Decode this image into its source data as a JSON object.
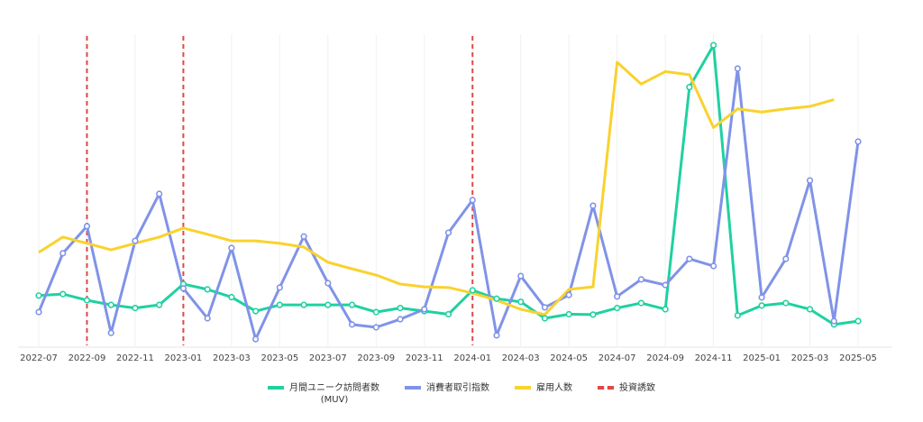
{
  "chart_data": {
    "type": "line",
    "categories": [
      "2022-07",
      null,
      "2022-09",
      null,
      "2022-11",
      null,
      "2023-01",
      null,
      "2023-03",
      null,
      "2023-05",
      null,
      "2023-07",
      null,
      "2023-09",
      null,
      "2023-11",
      null,
      "2024-01",
      null,
      "2024-03",
      null,
      "2024-05",
      null,
      "2024-07",
      null,
      "2024-09",
      null,
      "2024-11",
      null,
      "2025-01",
      null,
      "2025-03",
      null,
      "2025-05"
    ],
    "ylim": [
      0,
      100
    ],
    "grid": true,
    "series": [
      {
        "name": "月間ユニーク訪問者数\n(MUV)",
        "color": "#1fd1a0",
        "markers": true,
        "values": [
          16,
          16.5,
          14.5,
          13,
          12,
          13,
          19.7,
          18,
          15.5,
          11,
          13,
          13,
          13,
          13,
          10.7,
          12,
          11,
          10,
          17.7,
          15,
          14,
          8.7,
          10,
          9.9,
          12,
          13.6,
          11.6,
          83,
          96.5,
          9.6,
          12.8,
          13.6,
          11.6,
          6.7,
          7.8
        ]
      },
      {
        "name": "消費者取引指数",
        "color": "#8093e8",
        "markers": true,
        "values": [
          10.7,
          29.6,
          38.3,
          4,
          33.6,
          48.7,
          18.3,
          8.7,
          31.3,
          2,
          18.6,
          35,
          20,
          6.7,
          5.8,
          8.4,
          11.6,
          36.2,
          46.7,
          3.2,
          22.3,
          12.2,
          16.2,
          44.9,
          15.7,
          21.2,
          19.4,
          27.8,
          25.5,
          89,
          15.4,
          27.8,
          53,
          7.8,
          65.5
        ]
      },
      {
        "name": "雇用人数",
        "color": "#f9d22e",
        "markers": false,
        "values": [
          29.9,
          34.8,
          32.8,
          30.7,
          32.8,
          34.8,
          37.7,
          35.7,
          33.6,
          33.6,
          32.8,
          31.6,
          26.7,
          24.6,
          22.6,
          19.7,
          18.8,
          18.6,
          16.8,
          14.5,
          11.6,
          9.9,
          18,
          18.8,
          91,
          84,
          88,
          87,
          70,
          76,
          75,
          76,
          76.8,
          79,
          null
        ]
      }
    ],
    "events": {
      "name": "投資誘致",
      "color": "#e04848",
      "at": [
        "2022-09",
        "2023-01",
        "2024-01"
      ]
    }
  }
}
